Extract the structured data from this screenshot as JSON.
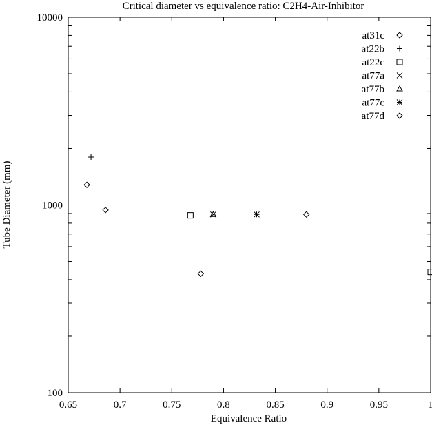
{
  "chart_data": {
    "type": "scatter",
    "title": "Critical diameter vs equivalence ratio: C2H4-Air-Inhibitor",
    "xlabel": "Equivalence Ratio",
    "ylabel": "Tube Diameter (mm)",
    "xlim": [
      0.65,
      1.0
    ],
    "ylim": [
      100,
      10000
    ],
    "yscale": "log",
    "grid": false,
    "legend_position": "top-right",
    "x_ticks": [
      {
        "value": 0.65,
        "label": "0.65"
      },
      {
        "value": 0.7,
        "label": "0.7"
      },
      {
        "value": 0.75,
        "label": "0.75"
      },
      {
        "value": 0.8,
        "label": "0.8"
      },
      {
        "value": 0.85,
        "label": "0.85"
      },
      {
        "value": 0.9,
        "label": "0.9"
      },
      {
        "value": 0.95,
        "label": "0.95"
      },
      {
        "value": 1.0,
        "label": "1"
      }
    ],
    "y_ticks": [
      {
        "value": 100,
        "label": "100"
      },
      {
        "value": 1000,
        "label": "1000"
      },
      {
        "value": 10000,
        "label": "10000"
      }
    ],
    "series": [
      {
        "name": "at31c",
        "marker": "diamond",
        "points": [
          {
            "x": 0.88,
            "y": 890
          }
        ]
      },
      {
        "name": "at22b",
        "marker": "plus",
        "points": [
          {
            "x": 0.672,
            "y": 1800
          }
        ]
      },
      {
        "name": "at22c",
        "marker": "square",
        "points": [
          {
            "x": 0.768,
            "y": 880
          },
          {
            "x": 1.0,
            "y": 440
          }
        ]
      },
      {
        "name": "at77a",
        "marker": "cross",
        "points": [
          {
            "x": 0.79,
            "y": 890
          }
        ]
      },
      {
        "name": "at77b",
        "marker": "triangle",
        "points": [
          {
            "x": 0.79,
            "y": 890
          }
        ]
      },
      {
        "name": "at77c",
        "marker": "star",
        "points": [
          {
            "x": 0.832,
            "y": 890
          }
        ]
      },
      {
        "name": "at77d",
        "marker": "diamond",
        "points": [
          {
            "x": 0.668,
            "y": 1280
          },
          {
            "x": 0.686,
            "y": 940
          },
          {
            "x": 0.778,
            "y": 430
          }
        ]
      }
    ]
  }
}
